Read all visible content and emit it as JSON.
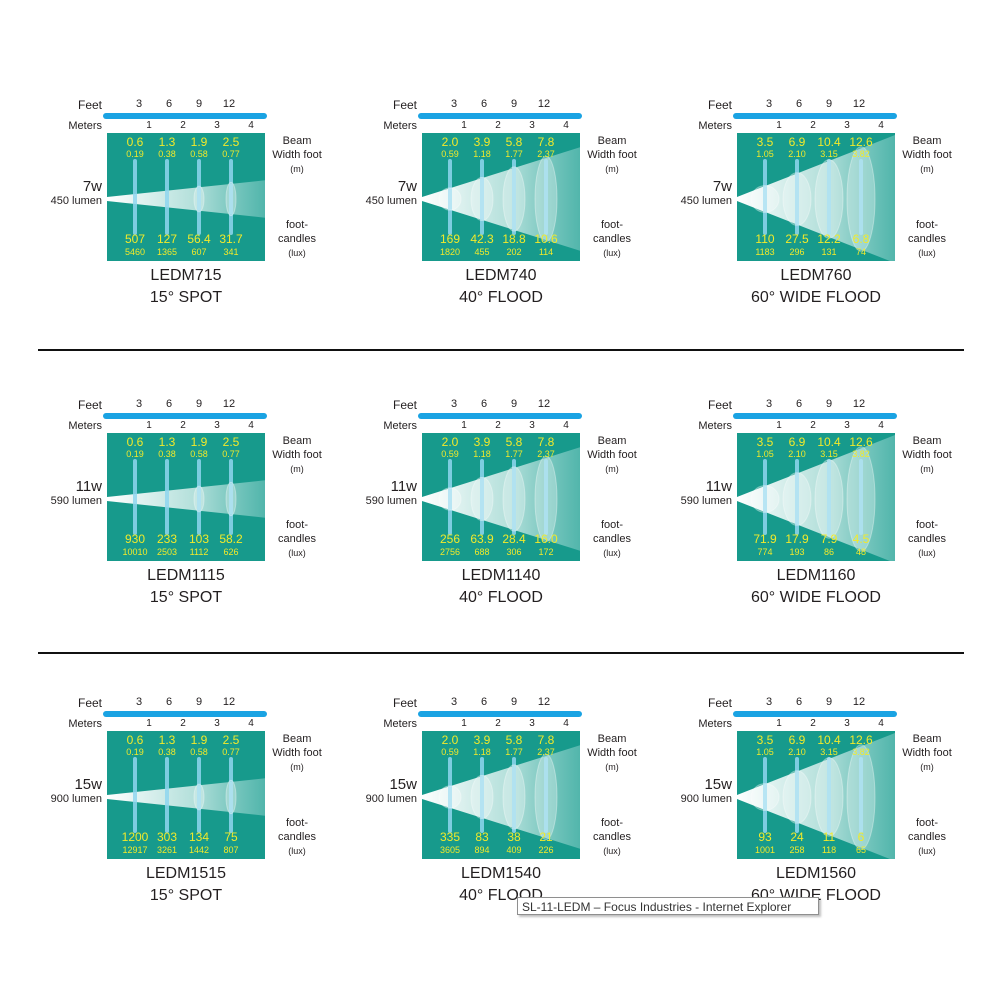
{
  "labels": {
    "feet": "Feet",
    "meters": "Meters",
    "beam_line1": "Beam",
    "beam_line2": "Width foot",
    "beam_unit": "(m)",
    "fc_line1": "foot-",
    "fc_line2": "candles",
    "fc_unit": "(lux)",
    "feet_ticks": [
      "3",
      "6",
      "9",
      "12"
    ],
    "meter_ticks": [
      "1",
      "2",
      "3",
      "4"
    ]
  },
  "colors": {
    "panel": "#179a8c",
    "scale_bar": "#1aa3e3",
    "values": "#f2ea2a",
    "divider": "#111111"
  },
  "tooltip": "SL-11-LEDM – Focus Industries - Internet Explorer",
  "rows": [
    {
      "watt": "7w",
      "lumen": "450 lumen",
      "items": [
        {
          "model": "LEDM715",
          "beam": "15° SPOT",
          "angle": 15,
          "beam_ft": [
            "0.6",
            "1.3",
            "1.9",
            "2.5"
          ],
          "beam_m": [
            "0.19",
            "0.38",
            "0.58",
            "0.77"
          ],
          "fc": [
            "507",
            "127",
            "56.4",
            "31.7"
          ],
          "lux": [
            "5460",
            "1365",
            "607",
            "341"
          ]
        },
        {
          "model": "LEDM740",
          "beam": "40° FLOOD",
          "angle": 40,
          "beam_ft": [
            "2.0",
            "3.9",
            "5.8",
            "7.8"
          ],
          "beam_m": [
            "0.59",
            "1.18",
            "1.77",
            "2.37"
          ],
          "fc": [
            "169",
            "42.3",
            "18.8",
            "10.6"
          ],
          "lux": [
            "1820",
            "455",
            "202",
            "114"
          ]
        },
        {
          "model": "LEDM760",
          "beam": "60° WIDE FLOOD",
          "angle": 60,
          "beam_ft": [
            "3.5",
            "6.9",
            "10.4",
            "12.6"
          ],
          "beam_m": [
            "1.05",
            "2.10",
            "3.15",
            "3.82"
          ],
          "fc": [
            "110",
            "27.5",
            "12.2",
            "6.8"
          ],
          "lux": [
            "1183",
            "296",
            "131",
            "74"
          ]
        }
      ]
    },
    {
      "watt": "11w",
      "lumen": "590 lumen",
      "items": [
        {
          "model": "LEDM1115",
          "beam": "15° SPOT",
          "angle": 15,
          "beam_ft": [
            "0.6",
            "1.3",
            "1.9",
            "2.5"
          ],
          "beam_m": [
            "0.19",
            "0.38",
            "0.58",
            "0.77"
          ],
          "fc": [
            "930",
            "233",
            "103",
            "58.2"
          ],
          "lux": [
            "10010",
            "2503",
            "1112",
            "626"
          ]
        },
        {
          "model": "LEDM1140",
          "beam": "40° FLOOD",
          "angle": 40,
          "beam_ft": [
            "2.0",
            "3.9",
            "5.8",
            "7.8"
          ],
          "beam_m": [
            "0.59",
            "1.18",
            "1.77",
            "2.37"
          ],
          "fc": [
            "256",
            "63.9",
            "28.4",
            "16.0"
          ],
          "lux": [
            "2756",
            "688",
            "306",
            "172"
          ]
        },
        {
          "model": "LEDM1160",
          "beam": "60° WIDE FLOOD",
          "angle": 60,
          "beam_ft": [
            "3.5",
            "6.9",
            "10.4",
            "12.6"
          ],
          "beam_m": [
            "1.05",
            "2.10",
            "3.15",
            "3.82"
          ],
          "fc": [
            "71.9",
            "17.9",
            "7.9",
            "4.5"
          ],
          "lux": [
            "774",
            "193",
            "86",
            "48"
          ]
        }
      ]
    },
    {
      "watt": "15w",
      "lumen": "900 lumen",
      "items": [
        {
          "model": "LEDM1515",
          "beam": "15° SPOT",
          "angle": 15,
          "beam_ft": [
            "0.6",
            "1.3",
            "1.9",
            "2.5"
          ],
          "beam_m": [
            "0.19",
            "0.38",
            "0.58",
            "0.77"
          ],
          "fc": [
            "1200",
            "303",
            "134",
            "75"
          ],
          "lux": [
            "12917",
            "3261",
            "1442",
            "807"
          ]
        },
        {
          "model": "LEDM1540",
          "beam": "40° FLOOD",
          "angle": 40,
          "beam_ft": [
            "2.0",
            "3.9",
            "5.8",
            "7.8"
          ],
          "beam_m": [
            "0.59",
            "1.18",
            "1.77",
            "2.37"
          ],
          "fc": [
            "335",
            "83",
            "38",
            "21"
          ],
          "lux": [
            "3605",
            "894",
            "409",
            "226"
          ]
        },
        {
          "model": "LEDM1560",
          "beam": "60° WIDE FLOOD",
          "angle": 60,
          "beam_ft": [
            "3.5",
            "6.9",
            "10.4",
            "12.6"
          ],
          "beam_m": [
            "1.05",
            "2.10",
            "3.15",
            "3.82"
          ],
          "fc": [
            "93",
            "24",
            "11",
            "6"
          ],
          "lux": [
            "1001",
            "258",
            "118",
            "65"
          ]
        }
      ]
    }
  ]
}
